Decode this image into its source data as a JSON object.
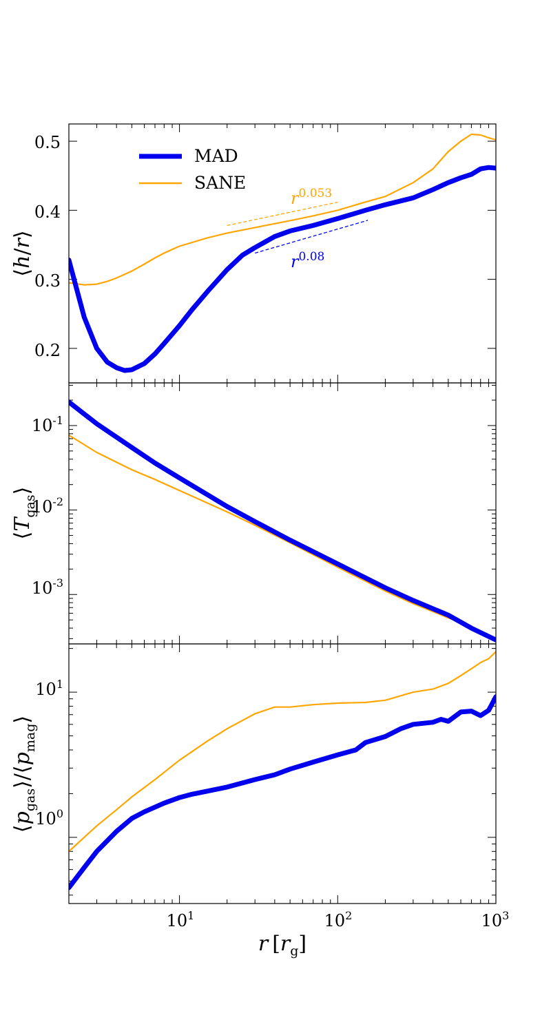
{
  "colors": {
    "mad": "#0000ee",
    "sane": "#ffa500"
  },
  "chart_data": [
    {
      "type": "line",
      "panel": "top",
      "xscale": "log",
      "xlim": [
        2,
        1000
      ],
      "ylim": [
        0.15,
        0.525
      ],
      "yticks": [
        0.2,
        0.3,
        0.4,
        0.5
      ],
      "ytick_labels": [
        "0.2",
        "0.3",
        "0.4",
        "0.5"
      ],
      "ylabel": "⟨h/r⟩",
      "legend": {
        "placement": "upper-left",
        "entries": [
          "MAD",
          "SANE"
        ]
      },
      "series": [
        {
          "name": "MAD",
          "x": [
            2,
            2.5,
            3,
            3.5,
            4,
            4.5,
            5,
            6,
            7,
            8,
            10,
            12,
            15,
            20,
            25,
            30,
            40,
            50,
            70,
            100,
            150,
            200,
            300,
            400,
            500,
            600,
            700,
            800,
            900,
            1000
          ],
          "y": [
            0.328,
            0.245,
            0.2,
            0.18,
            0.172,
            0.168,
            0.169,
            0.178,
            0.192,
            0.207,
            0.233,
            0.256,
            0.282,
            0.314,
            0.335,
            0.346,
            0.362,
            0.37,
            0.378,
            0.388,
            0.4,
            0.408,
            0.418,
            0.43,
            0.44,
            0.447,
            0.452,
            0.46,
            0.462,
            0.461
          ]
        },
        {
          "name": "SANE",
          "x": [
            2,
            2.5,
            3,
            3.5,
            4,
            5,
            6,
            7,
            8,
            10,
            15,
            20,
            30,
            50,
            70,
            100,
            150,
            200,
            300,
            400,
            500,
            600,
            700,
            800,
            900,
            1000
          ],
          "y": [
            0.295,
            0.292,
            0.293,
            0.297,
            0.302,
            0.312,
            0.322,
            0.331,
            0.338,
            0.348,
            0.36,
            0.367,
            0.375,
            0.385,
            0.392,
            0.4,
            0.412,
            0.42,
            0.44,
            0.46,
            0.485,
            0.5,
            0.51,
            0.509,
            0.505,
            0.502
          ]
        }
      ],
      "guides": [
        {
          "label": "r^0.053",
          "exponent": 0.053,
          "x": [
            20,
            100
          ],
          "y_start": 0.378,
          "color": "#ffa500",
          "dash": true
        },
        {
          "label": "r^0.08",
          "exponent": 0.08,
          "x": [
            30,
            155
          ],
          "y_start": 0.338,
          "color": "#0000ee",
          "dash": true
        }
      ]
    },
    {
      "type": "line",
      "panel": "middle",
      "xscale": "log",
      "yscale": "log",
      "xlim": [
        2,
        1000
      ],
      "ylim": [
        0.00026,
        0.32
      ],
      "yticks": [
        0.001,
        0.01,
        0.1
      ],
      "ytick_labels": [
        "10-3",
        "10-2",
        "10-1"
      ],
      "ylabel": "⟨Tgas⟩",
      "series": [
        {
          "name": "MAD",
          "x": [
            2,
            3,
            5,
            7,
            10,
            20,
            30,
            50,
            100,
            200,
            300,
            500,
            700,
            1000
          ],
          "y": [
            0.19,
            0.105,
            0.055,
            0.036,
            0.024,
            0.011,
            0.0073,
            0.0044,
            0.0023,
            0.0012,
            0.00085,
            0.00057,
            0.0004,
            0.00029
          ]
        },
        {
          "name": "SANE",
          "x": [
            2,
            3,
            5,
            7,
            10,
            20,
            30,
            50,
            100,
            200,
            300,
            500,
            700,
            1000
          ],
          "y": [
            0.077,
            0.048,
            0.03,
            0.023,
            0.017,
            0.0095,
            0.0066,
            0.0041,
            0.0021,
            0.0011,
            0.00078,
            0.00053,
            0.00041,
            0.0003
          ]
        }
      ]
    },
    {
      "type": "line",
      "panel": "bottom",
      "xscale": "log",
      "yscale": "log",
      "xlim": [
        2,
        1000
      ],
      "ylim": [
        0.35,
        21.5
      ],
      "yticks": [
        1,
        10
      ],
      "ytick_labels": [
        "10^0",
        "10^1"
      ],
      "xticks": [
        10,
        100,
        1000
      ],
      "xtick_labels": [
        "10^1",
        "10^2",
        "10^3"
      ],
      "xlabel": "r [rg]",
      "ylabel": "⟨pgas⟩/⟨pmag⟩",
      "series": [
        {
          "name": "MAD",
          "x": [
            2,
            2.5,
            3,
            4,
            5,
            6,
            8,
            10,
            12,
            15,
            20,
            30,
            40,
            50,
            70,
            100,
            130,
            150,
            200,
            250,
            300,
            400,
            450,
            500,
            600,
            700,
            800,
            900,
            1000
          ],
          "y": [
            0.45,
            0.62,
            0.8,
            1.1,
            1.35,
            1.5,
            1.72,
            1.88,
            1.98,
            2.08,
            2.22,
            2.5,
            2.7,
            2.95,
            3.3,
            3.7,
            4.0,
            4.5,
            4.95,
            5.6,
            6.0,
            6.2,
            6.5,
            6.3,
            7.3,
            7.4,
            6.9,
            7.5,
            9.3
          ]
        },
        {
          "name": "SANE",
          "x": [
            2,
            3,
            4,
            5,
            7,
            10,
            15,
            20,
            30,
            40,
            50,
            70,
            100,
            150,
            200,
            300,
            400,
            500,
            600,
            700,
            800,
            900,
            1000
          ],
          "y": [
            0.8,
            1.2,
            1.55,
            1.9,
            2.5,
            3.4,
            4.6,
            5.6,
            7.1,
            7.9,
            7.9,
            8.2,
            8.4,
            8.5,
            8.8,
            10.0,
            10.5,
            11.5,
            13.0,
            14.5,
            16.0,
            17.0,
            19.0
          ]
        }
      ]
    }
  ],
  "tick_texts": {
    "p1": [
      "0.2",
      "0.3",
      "0.4",
      "0.5"
    ],
    "p2_base": "10",
    "p2_exp": [
      "-3",
      "-2",
      "-1"
    ],
    "p3_base": "10",
    "p3_exp": [
      "0",
      "1"
    ],
    "x_base": "10",
    "x_exp": [
      "1",
      "2",
      "3"
    ]
  },
  "labels": {
    "legend_mad": "MAD",
    "legend_sane": "SANE",
    "guide_sane_base": "r",
    "guide_sane_exp": "0.053",
    "guide_mad_base": "r",
    "guide_mad_exp": "0.08",
    "xlabel_r": "r",
    "xlabel_open": "[",
    "xlabel_rg": "r",
    "xlabel_g": "g",
    "xlabel_close": "]",
    "y1_open": "⟨",
    "y1_h": "h",
    "y1_slash": "/",
    "y1_r": "r",
    "y1_close": "⟩",
    "y2_open": "⟨",
    "y2_T": "T",
    "y2_sub": "gas",
    "y2_close": "⟩",
    "y3_open1": "⟨",
    "y3_p1": "p",
    "y3_sub1": "gas",
    "y3_close1": "⟩",
    "y3_slash": "/",
    "y3_open2": "⟨",
    "y3_p2": "p",
    "y3_sub2": "mag",
    "y3_close2": "⟩"
  }
}
